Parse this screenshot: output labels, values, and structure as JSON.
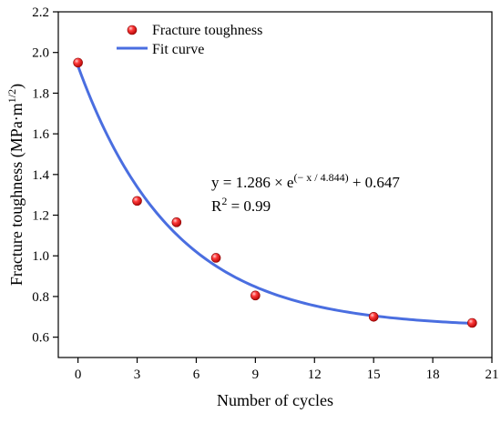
{
  "chart_data": {
    "type": "scatter",
    "xlabel": "Number of cycles",
    "ylabel": {
      "main": "Fracture toughness (MPa·m",
      "sup": "1/2",
      "close": ")"
    },
    "xlim": [
      -1,
      21
    ],
    "ylim": [
      0.5,
      2.2
    ],
    "x_ticks": [
      0,
      3,
      6,
      9,
      12,
      15,
      18,
      21
    ],
    "x_tick_labels": [
      "0",
      "3",
      "6",
      "9",
      "12",
      "15",
      "18",
      "21"
    ],
    "y_ticks": [
      0.6,
      0.8,
      1.0,
      1.2,
      1.4,
      1.6,
      1.8,
      2.0,
      2.2
    ],
    "y_tick_labels": [
      "0.6",
      "0.8",
      "1.0",
      "1.2",
      "1.4",
      "1.6",
      "1.8",
      "2.0",
      "2.2"
    ],
    "grid": false,
    "legend_position": "top-left",
    "series": [
      {
        "name": "Fracture toughness",
        "kind": "scatter",
        "color": "#e8141b",
        "x": [
          0,
          3,
          5,
          7,
          9,
          15,
          20
        ],
        "y": [
          1.95,
          1.27,
          1.165,
          0.99,
          0.805,
          0.7,
          0.67
        ]
      },
      {
        "name": "Fit curve",
        "kind": "line",
        "color": "#4a6ee0",
        "model": {
          "a": 1.286,
          "t": 4.844,
          "c": 0.647
        },
        "x_range": [
          0,
          20
        ]
      }
    ],
    "annotations": {
      "equation": {
        "prefix": "y = 1.286 × e",
        "exponent": "(− x / 4.844)",
        "suffix": " + 0.647"
      },
      "r_squared": {
        "label": "R",
        "sup": "2",
        "value": " = 0.99"
      }
    }
  }
}
